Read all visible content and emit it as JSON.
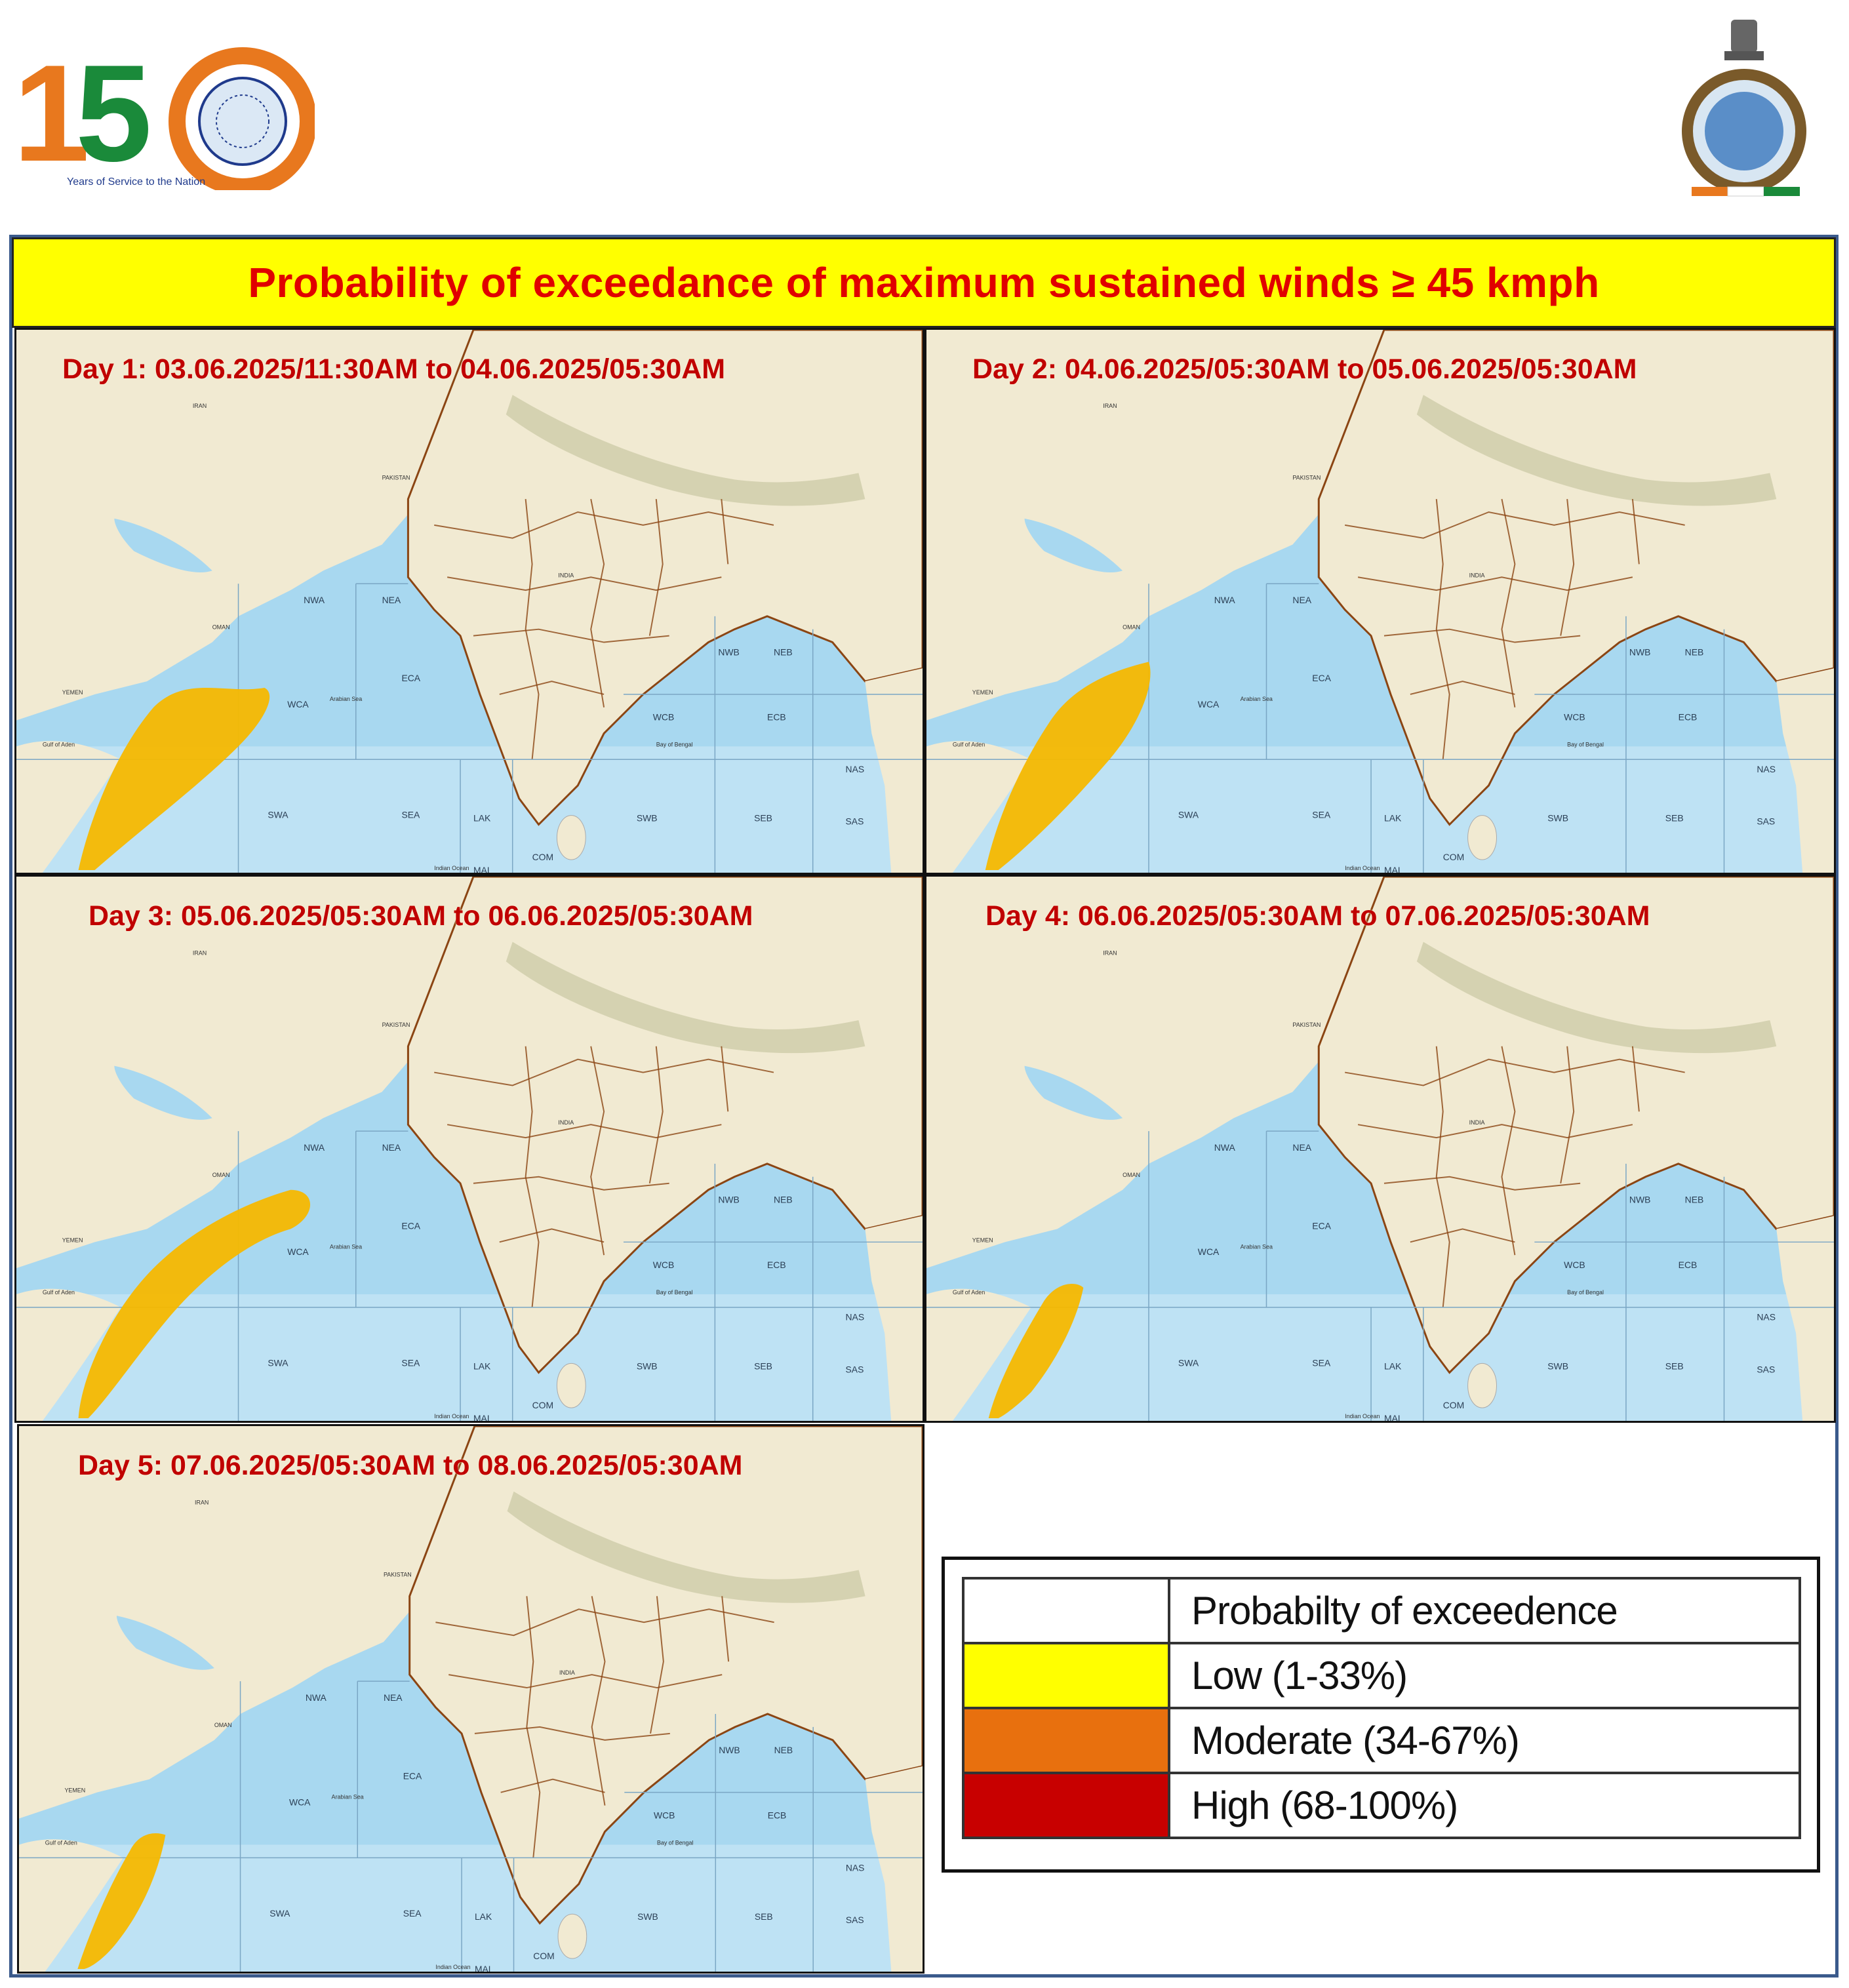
{
  "header": {
    "logo_150": {
      "numeral": "150",
      "caption": "Years of Service to the Nation",
      "accent": "#e8781e",
      "green": "#1a8a3a",
      "navy": "#1f3a8c"
    },
    "logo_imd": {
      "description_icon": "imd-emblem-icon"
    }
  },
  "title": "Probability  of exceedance of maximum  sustained  winds ≥ 45 kmph",
  "colors": {
    "title_bg": "#ffff00",
    "title_text": "#e00000",
    "label_text": "#c00000",
    "ocean": "#a8d8f0",
    "land": "#f1ead2",
    "boundary": "#8b4513",
    "shade": "#f5b800"
  },
  "panels": [
    {
      "id": "day1",
      "label": "Day 1: 03.06.2025/11:30AM  to 04.06.2025/05:30AM"
    },
    {
      "id": "day2",
      "label": "Day 2:  04.06.2025/05:30AM  to 05.06.2025/05:30AM"
    },
    {
      "id": "day3",
      "label": "Day 3:  05.06.2025/05:30AM  to 06.06.2025/05:30AM"
    },
    {
      "id": "day4",
      "label": "Day 4:  06.06.2025/05:30AM  to 07.06.2025/05:30AM"
    },
    {
      "id": "day5",
      "label": "Day 5:  07.06.2025/05:30AM  to 08.06.2025/05:30AM"
    }
  ],
  "map_labels": {
    "regions": [
      "NWA",
      "NEA",
      "ECA",
      "WCA",
      "SWA",
      "SEA",
      "LAK",
      "MAL",
      "COM",
      "NWB",
      "NEB",
      "WCB",
      "ECB",
      "SWB",
      "SEB",
      "NAS",
      "SAS"
    ],
    "places": [
      "IRAN",
      "PAKISTAN",
      "OMAN",
      "YEMEN",
      "INDIA",
      "Arabian Sea",
      "Bay of Bengal",
      "Gulf of Aden",
      "Indian Ocean"
    ]
  },
  "legend": {
    "header": "Probabilty of exceedence",
    "items": [
      {
        "label": "Low (1-33%)",
        "color": "#ffff00"
      },
      {
        "label": "Moderate (34-67%)",
        "color": "#e8700e"
      },
      {
        "label": "High (68-100%)",
        "color": "#c80000"
      }
    ]
  }
}
